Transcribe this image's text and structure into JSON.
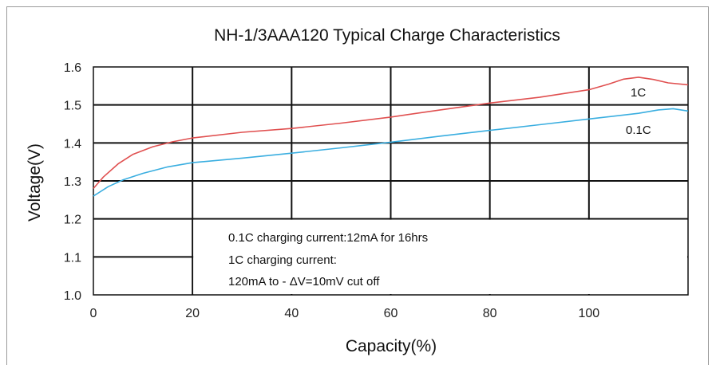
{
  "chart_data": {
    "type": "line",
    "title": "NH-1/3AAA120 Typical Charge Characteristics",
    "xlabel": "Capacity(%)",
    "ylabel": "Voltage(V)",
    "xlim": [
      0,
      120
    ],
    "ylim": [
      1.0,
      1.6
    ],
    "x_ticks": [
      "0",
      "20",
      "40",
      "60",
      "80",
      "100"
    ],
    "y_ticks": [
      "1.0",
      "1.1",
      "1.2",
      "1.3",
      "1.4",
      "1.5",
      "1.6"
    ],
    "grid": true,
    "series": [
      {
        "name": "1C",
        "color": "#e05050",
        "x": [
          0,
          2,
          5,
          8,
          12,
          16,
          20,
          30,
          40,
          50,
          60,
          70,
          80,
          90,
          100,
          104,
          107,
          110,
          113,
          116,
          120
        ],
        "y": [
          1.28,
          1.31,
          1.345,
          1.37,
          1.39,
          1.403,
          1.413,
          1.428,
          1.438,
          1.452,
          1.468,
          1.487,
          1.505,
          1.52,
          1.54,
          1.555,
          1.568,
          1.573,
          1.567,
          1.558,
          1.553
        ]
      },
      {
        "name": "0.1C",
        "color": "#3aaee0",
        "x": [
          0,
          3,
          6,
          10,
          15,
          20,
          30,
          40,
          50,
          60,
          70,
          80,
          90,
          100,
          110,
          114,
          117,
          120
        ],
        "y": [
          1.26,
          1.285,
          1.303,
          1.32,
          1.337,
          1.348,
          1.36,
          1.373,
          1.387,
          1.402,
          1.418,
          1.433,
          1.448,
          1.463,
          1.478,
          1.487,
          1.49,
          1.484
        ]
      }
    ],
    "annotations": [
      "0.1C charging current:12mA for 16hrs",
      "1C charging current:",
      "120mA to - ΔV=10mV cut off"
    ]
  }
}
